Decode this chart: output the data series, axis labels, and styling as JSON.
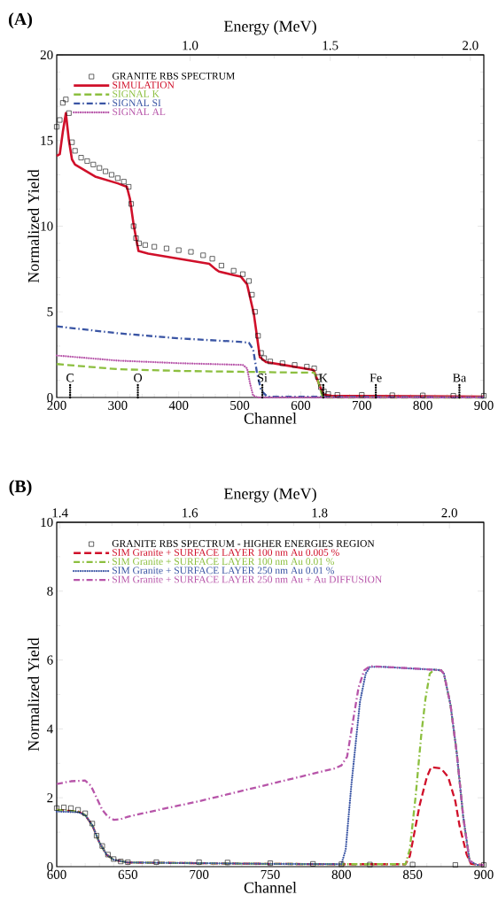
{
  "chart_data": [
    {
      "type": "line",
      "title": "(A)",
      "xlabel": "Channel",
      "ylabel": "Normalized Yield",
      "x2label": "Energy (MeV)",
      "xlim": [
        200,
        900
      ],
      "ylim": [
        0,
        20
      ],
      "xticks": [
        200,
        300,
        400,
        500,
        600,
        700,
        800,
        900
      ],
      "yticks": [
        0,
        5,
        10,
        15,
        20
      ],
      "x2lim": [
        0.524,
        2.048
      ],
      "x2ticks": [
        {
          "value": 1.0,
          "label": "1.0"
        },
        {
          "value": 1.5,
          "label": "1.5"
        },
        {
          "value": 2.0,
          "label": "2.0"
        }
      ],
      "legend": "top left",
      "ref_lines": [
        {
          "axis": "x",
          "value": 222,
          "label": "C"
        },
        {
          "axis": "x",
          "value": 333,
          "label": "O"
        },
        {
          "axis": "x",
          "value": 537,
          "label": "Si"
        },
        {
          "axis": "x",
          "value": 637,
          "label": "K"
        },
        {
          "axis": "x",
          "value": 723,
          "label": "Fe"
        },
        {
          "axis": "x",
          "value": 860,
          "label": "Ba"
        }
      ],
      "series": [
        {
          "name": "GRANITE RBS SPECTRUM",
          "type": "scatter",
          "marker": "square",
          "color": "#000000",
          "x": [
            200,
            205,
            210,
            215,
            220,
            225,
            230,
            240,
            250,
            260,
            270,
            280,
            290,
            300,
            310,
            318,
            322,
            326,
            330,
            335,
            345,
            360,
            380,
            400,
            420,
            440,
            455,
            470,
            490,
            505,
            515,
            520,
            525,
            530,
            535,
            540,
            550,
            570,
            590,
            610,
            622,
            628,
            633,
            638,
            645,
            660,
            700,
            750,
            800,
            850,
            900
          ],
          "values": [
            15.8,
            16.2,
            17.2,
            17.4,
            16.6,
            14.9,
            14.4,
            14.0,
            13.8,
            13.6,
            13.4,
            13.2,
            13.0,
            12.8,
            12.6,
            12.3,
            11.3,
            10.0,
            9.3,
            9.0,
            8.9,
            8.8,
            8.7,
            8.6,
            8.5,
            8.3,
            8.1,
            7.7,
            7.4,
            7.2,
            6.8,
            6.0,
            5.0,
            3.6,
            2.6,
            2.3,
            2.1,
            2.0,
            1.9,
            1.8,
            1.7,
            1.2,
            0.6,
            0.35,
            0.2,
            0.15,
            0.15,
            0.13,
            0.12,
            0.1,
            0.1
          ]
        },
        {
          "name": "SIMULATION",
          "type": "line",
          "line_style": "solid",
          "color": "#d0102a",
          "x": [
            200,
            205,
            210,
            215,
            220,
            225,
            230,
            263,
            300,
            315,
            320,
            326,
            334,
            350,
            400,
            450,
            460,
            466,
            490,
            502,
            512,
            523,
            533,
            543,
            575,
            621,
            629,
            637,
            650,
            900
          ],
          "values": [
            14.1,
            14.2,
            15.5,
            16.6,
            15.0,
            13.9,
            13.6,
            12.9,
            12.5,
            12.3,
            11.6,
            10.1,
            8.55,
            8.4,
            8.1,
            7.8,
            7.5,
            7.35,
            7.15,
            7.05,
            6.6,
            4.9,
            2.35,
            2.07,
            1.88,
            1.6,
            0.87,
            0.17,
            0.1,
            0.05
          ]
        },
        {
          "name": "SIGNAL K",
          "type": "line",
          "line_style": "dashed",
          "color": "#8cbf3f",
          "x": [
            200,
            300,
            400,
            500,
            600,
            622,
            628,
            635,
            640,
            900
          ],
          "values": [
            1.95,
            1.65,
            1.55,
            1.5,
            1.45,
            1.45,
            1.0,
            0.1,
            0,
            0
          ]
        },
        {
          "name": "SIGNAL SI",
          "type": "line",
          "line_style": "dashdot",
          "color": "#3a55a4",
          "x": [
            200,
            300,
            400,
            500,
            515,
            522,
            528,
            535,
            545,
            900
          ],
          "values": [
            4.15,
            3.75,
            3.45,
            3.25,
            3.2,
            2.8,
            1.5,
            0.4,
            0.05,
            0
          ]
        },
        {
          "name": "SIGNAL AL",
          "type": "line",
          "line_style": "dotted",
          "color": "#b755a9",
          "x": [
            200,
            300,
            400,
            505,
            512,
            517,
            522,
            530,
            900
          ],
          "values": [
            2.45,
            2.15,
            2.0,
            1.9,
            1.7,
            0.8,
            0.1,
            0,
            0
          ]
        }
      ]
    },
    {
      "type": "line",
      "title": "(B)",
      "xlabel": "Channel",
      "ylabel": "Normalized Yield",
      "x2label": "Energy (MeV)",
      "xlim": [
        600,
        900
      ],
      "ylim": [
        0,
        10
      ],
      "xticks": [
        600,
        650,
        700,
        750,
        800,
        850,
        900
      ],
      "yticks": [
        0,
        2,
        4,
        6,
        8,
        10
      ],
      "x2lim": [
        1.395,
        2.053
      ],
      "x2ticks": [
        {
          "value": 1.4,
          "label": "1.4"
        },
        {
          "value": 1.6,
          "label": "1.6"
        },
        {
          "value": 1.8,
          "label": "1.8"
        },
        {
          "value": 2.0,
          "label": "2.0"
        }
      ],
      "legend": "top left",
      "series": [
        {
          "name": "GRANITE RBS SPECTRUM - HIGHER ENERGIES REGION",
          "type": "scatter",
          "marker": "square",
          "color": "#000000",
          "x": [
            600,
            605,
            610,
            615,
            620,
            625,
            628,
            632,
            636,
            640,
            645,
            650,
            670,
            700,
            720,
            750,
            780,
            800,
            820,
            850,
            880,
            900
          ],
          "values": [
            1.7,
            1.72,
            1.7,
            1.65,
            1.55,
            1.25,
            0.9,
            0.6,
            0.35,
            0.22,
            0.15,
            0.13,
            0.13,
            0.13,
            0.12,
            0.1,
            0.08,
            0.07,
            0.06,
            0.06,
            0.05,
            0.05
          ]
        },
        {
          "name": "SIM Granite + SURFACE LAYER 100 nm Au 0.005 %",
          "type": "line",
          "line_style": "dashed",
          "color": "#d0102a",
          "x": [
            600,
            615,
            620,
            625,
            630,
            635,
            640,
            650,
            700,
            750,
            800,
            845,
            848,
            850,
            855,
            860,
            863,
            870,
            875,
            880,
            883,
            888,
            891,
            900
          ],
          "values": [
            1.65,
            1.6,
            1.5,
            1.2,
            0.7,
            0.35,
            0.2,
            0.12,
            0.1,
            0.08,
            0.07,
            0.07,
            0.3,
            0.72,
            1.8,
            2.6,
            2.89,
            2.85,
            2.6,
            1.9,
            1.18,
            0.35,
            0.08,
            0.05
          ]
        },
        {
          "name": "SIM Granite + SURFACE LAYER 100 nm Au 0.01 %",
          "type": "line",
          "line_style": "dashdot",
          "color": "#8cbf3f",
          "x": [
            600,
            615,
            620,
            625,
            630,
            635,
            640,
            650,
            700,
            750,
            800,
            845,
            848,
            852,
            856,
            859,
            862,
            865,
            870,
            872,
            876.6,
            881,
            885.5,
            890,
            895,
            900
          ],
          "values": [
            1.65,
            1.6,
            1.5,
            1.2,
            0.7,
            0.35,
            0.2,
            0.12,
            0.1,
            0.08,
            0.07,
            0.07,
            0.5,
            2.0,
            3.8,
            4.87,
            5.6,
            5.72,
            5.7,
            5.6,
            4.7,
            3.3,
            1.46,
            0.17,
            0.05,
            0.05
          ]
        },
        {
          "name": "SIM Granite + SURFACE LAYER 250 nm Au 0.01 %",
          "type": "line",
          "line_style": "dotted",
          "color": "#3a55a4",
          "x": [
            600,
            615,
            620,
            625,
            630,
            635,
            640,
            650,
            700,
            750,
            800,
            803,
            807,
            813,
            817,
            820,
            830,
            850,
            865,
            870,
            872,
            876.6,
            881,
            885.5,
            890,
            895,
            900
          ],
          "values": [
            1.6,
            1.58,
            1.5,
            1.2,
            0.7,
            0.35,
            0.2,
            0.12,
            0.1,
            0.08,
            0.07,
            0.5,
            2.38,
            4.78,
            5.6,
            5.8,
            5.8,
            5.75,
            5.72,
            5.7,
            5.6,
            4.7,
            3.3,
            1.46,
            0.17,
            0.05,
            0.05
          ]
        },
        {
          "name": "SIM Granite + SURFACE LAYER 250 nm Au + Au DIFFUSION",
          "type": "line",
          "line_style": "dashdot",
          "color": "#b755a9",
          "x": [
            600,
            610,
            620,
            624,
            628,
            632,
            636,
            640,
            645,
            650,
            675,
            700,
            725,
            750,
            775,
            795,
            800,
            804,
            808,
            812,
            816,
            820,
            840,
            860,
            870,
            872,
            876.6,
            881,
            885.5,
            890,
            895,
            900
          ],
          "values": [
            2.4,
            2.48,
            2.5,
            2.35,
            2.0,
            1.65,
            1.45,
            1.36,
            1.38,
            1.45,
            1.68,
            1.9,
            2.15,
            2.4,
            2.65,
            2.85,
            2.94,
            3.2,
            4.2,
            5.2,
            5.7,
            5.82,
            5.78,
            5.73,
            5.7,
            5.6,
            4.7,
            3.3,
            1.46,
            0.17,
            0.05,
            0.05
          ]
        }
      ]
    }
  ]
}
